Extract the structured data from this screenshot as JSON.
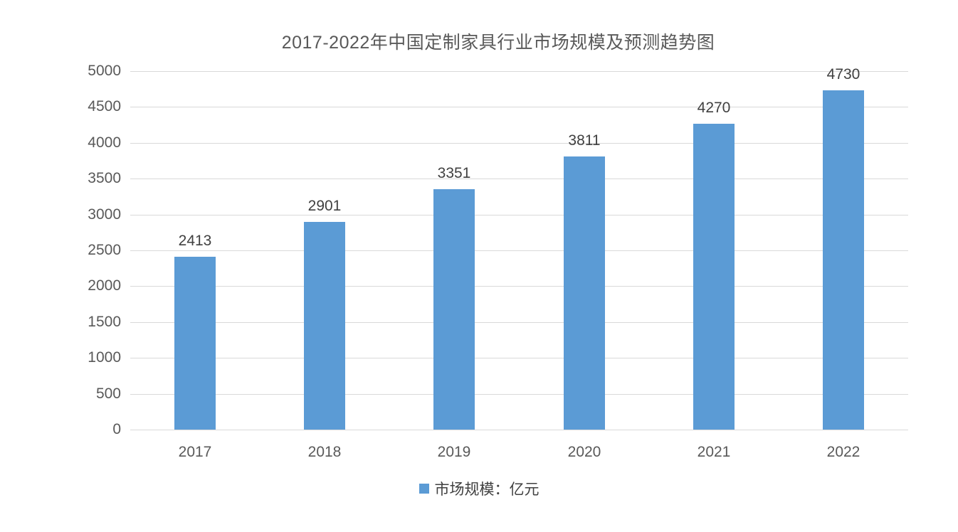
{
  "chart_data": {
    "type": "bar",
    "title": "2017-2022年中国定制家具行业市场规模及预测趋势图",
    "categories": [
      "2017",
      "2018",
      "2019",
      "2020",
      "2021",
      "2022"
    ],
    "series": [
      {
        "name": "市场规模：亿元",
        "values": [
          2413,
          2901,
          3351,
          3811,
          4270,
          4730
        ]
      }
    ],
    "data_labels": [
      "2413",
      "2901",
      "3351",
      "3811",
      "4270",
      "4730"
    ],
    "xlabel": "",
    "ylabel": "",
    "ylim": [
      0,
      5000
    ],
    "ytick_step": 500,
    "yticks": [
      0,
      500,
      1000,
      1500,
      2000,
      2500,
      3000,
      3500,
      4000,
      4500,
      5000
    ],
    "grid": true,
    "legend_position": "bottom",
    "colors": {
      "bar": "#5B9BD5",
      "gridline": "#D9D9D9",
      "axis_text": "#595959",
      "value_label_text": "#404040",
      "title_text": "#595959",
      "background": "#FFFFFF"
    }
  },
  "legend": {
    "marker_icon": "blue-square-icon",
    "label": "市场规模：亿元"
  }
}
